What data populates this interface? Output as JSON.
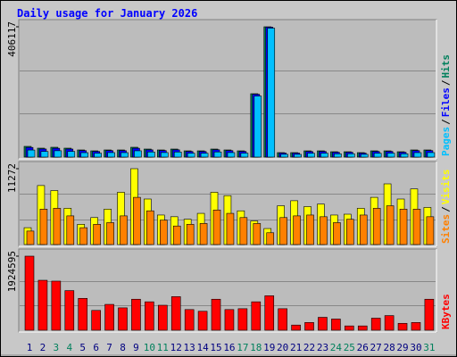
{
  "chart_data": [
    {
      "type": "bar",
      "title": "Daily usage for January 2026",
      "legend_separator": "/",
      "ylim": [
        0,
        406117
      ],
      "yticks": [
        406117
      ],
      "series": [
        {
          "name": "Hits",
          "color": "#00805c",
          "values": [
            33384,
            27820,
            30602,
            27820,
            22256,
            19474,
            22256,
            22256,
            30602,
            25038,
            22256,
            25038,
            19474,
            19474,
            25038,
            22256,
            19474,
            197522,
            406117,
            13910,
            13910,
            19474,
            19474,
            16692,
            16692,
            13910,
            19474,
            19474,
            16692,
            22256,
            22256
          ]
        },
        {
          "name": "Files",
          "color": "#0000ff",
          "values": [
            30100,
            25200,
            27500,
            25100,
            20100,
            17600,
            20300,
            20000,
            27600,
            22500,
            20300,
            22600,
            17500,
            17400,
            22800,
            20200,
            17600,
            195800,
            404900,
            12600,
            12500,
            17400,
            17600,
            15000,
            15100,
            12400,
            17500,
            17700,
            15000,
            20100,
            20300
          ]
        },
        {
          "name": "Pages",
          "color": "#00c0ff",
          "values": [
            22000,
            17500,
            19800,
            17700,
            13800,
            12100,
            14000,
            13900,
            19600,
            15900,
            14100,
            15800,
            12200,
            12000,
            16000,
            14000,
            12300,
            190200,
            401800,
            8600,
            8500,
            12000,
            12100,
            10200,
            10400,
            8500,
            12000,
            12300,
            10300,
            13900,
            14000
          ]
        }
      ]
    },
    {
      "type": "bar",
      "ylim": [
        0,
        11272
      ],
      "yticks": [
        11272
      ],
      "series": [
        {
          "name": "Visits",
          "color": "#ffff00",
          "values": [
            2505,
            8768,
            8016,
            5386,
            3006,
            4008,
            5261,
            7766,
            11272,
            6764,
            4384,
            4133,
            3758,
            4634,
            7766,
            7265,
            5010,
            3507,
            2380,
            5762,
            6513,
            5636,
            6012,
            4384,
            4509,
            5386,
            7014,
            9018,
            6764,
            8267,
            5511
          ]
        },
        {
          "name": "Sites",
          "color": "#ff8000",
          "values": [
            2004,
            5261,
            5386,
            4259,
            2505,
            3006,
            3257,
            4259,
            7014,
            5010,
            3632,
            2756,
            3006,
            3131,
            5135,
            4634,
            4008,
            3131,
            1754,
            4008,
            4259,
            4384,
            4133,
            3257,
            3758,
            4384,
            5386,
            5762,
            5261,
            5261,
            4133
          ]
        }
      ]
    },
    {
      "type": "bar",
      "ylim": [
        0,
        1924595
      ],
      "yticks": [
        1924595
      ],
      "categories": [
        "1",
        "2",
        "3",
        "4",
        "5",
        "6",
        "7",
        "8",
        "9",
        "10",
        "11",
        "12",
        "13",
        "14",
        "15",
        "16",
        "17",
        "18",
        "19",
        "20",
        "21",
        "22",
        "23",
        "24",
        "25",
        "26",
        "27",
        "28",
        "29",
        "30",
        "31"
      ],
      "category_colors": [
        "#000080",
        "#000080",
        "#00805c",
        "#00805c",
        "#000080",
        "#000080",
        "#000080",
        "#000080",
        "#000080",
        "#00805c",
        "#00805c",
        "#000080",
        "#000080",
        "#000080",
        "#000080",
        "#000080",
        "#00805c",
        "#00805c",
        "#000080",
        "#000080",
        "#000080",
        "#000080",
        "#000080",
        "#00805c",
        "#00805c",
        "#000080",
        "#000080",
        "#000080",
        "#000080",
        "#000080",
        "#00805c"
      ],
      "series": [
        {
          "name": "KBytes",
          "color": "#ff0000",
          "values": [
            1924595,
            1298000,
            1275600,
            1029400,
            828000,
            514700,
            671400,
            581900,
            805600,
            738500,
            649000,
            872800,
            537100,
            492300,
            805600,
            537100,
            559500,
            738500,
            895200,
            559500,
            134300,
            201400,
            335700,
            290900,
            111900,
            111900,
            313300,
            380400,
            179000,
            201400,
            805600
          ]
        }
      ]
    }
  ]
}
